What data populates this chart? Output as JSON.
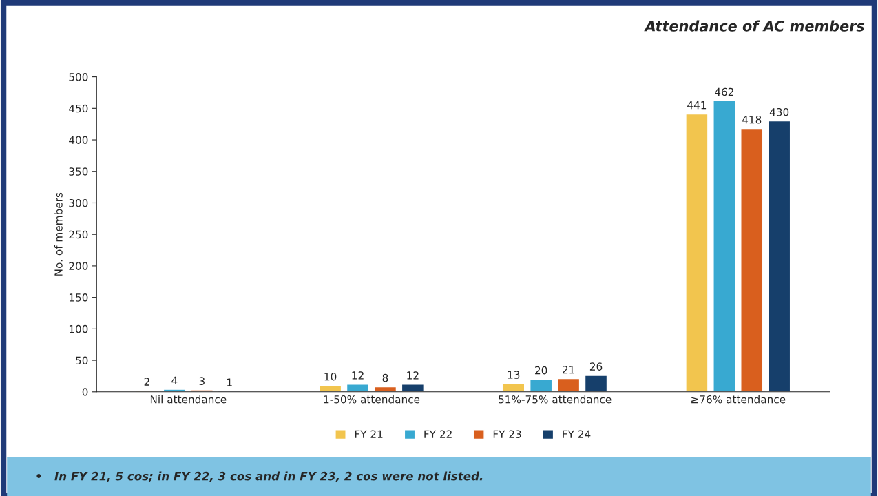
{
  "chart_data": {
    "type": "bar",
    "title": "Attendance of AC members",
    "ylabel": "No. of members",
    "categories": [
      "Nil attendance",
      "1-50% attendance",
      "51%-75% attendance",
      "≥76% attendance"
    ],
    "series": [
      {
        "name": "FY 21",
        "color": "#f2c54e",
        "values": [
          2,
          10,
          13,
          441
        ]
      },
      {
        "name": "FY 22",
        "color": "#38a9d1",
        "values": [
          4,
          12,
          20,
          462
        ]
      },
      {
        "name": "FY 23",
        "color": "#d95f1e",
        "values": [
          3,
          8,
          21,
          418
        ]
      },
      {
        "name": "FY 24",
        "color": "#163f6b",
        "values": [
          1,
          12,
          26,
          430
        ]
      }
    ],
    "ylim": [
      0,
      500
    ],
    "yticks": [
      0,
      50,
      100,
      150,
      200,
      250,
      300,
      350,
      400,
      450,
      500
    ],
    "data_labels": true,
    "grid": false,
    "legend": "bottom",
    "annotations": [
      "•   In FY 21, 5 cos; in FY 22, 3 cos and in FY 23, 2 cos were not listed."
    ]
  }
}
